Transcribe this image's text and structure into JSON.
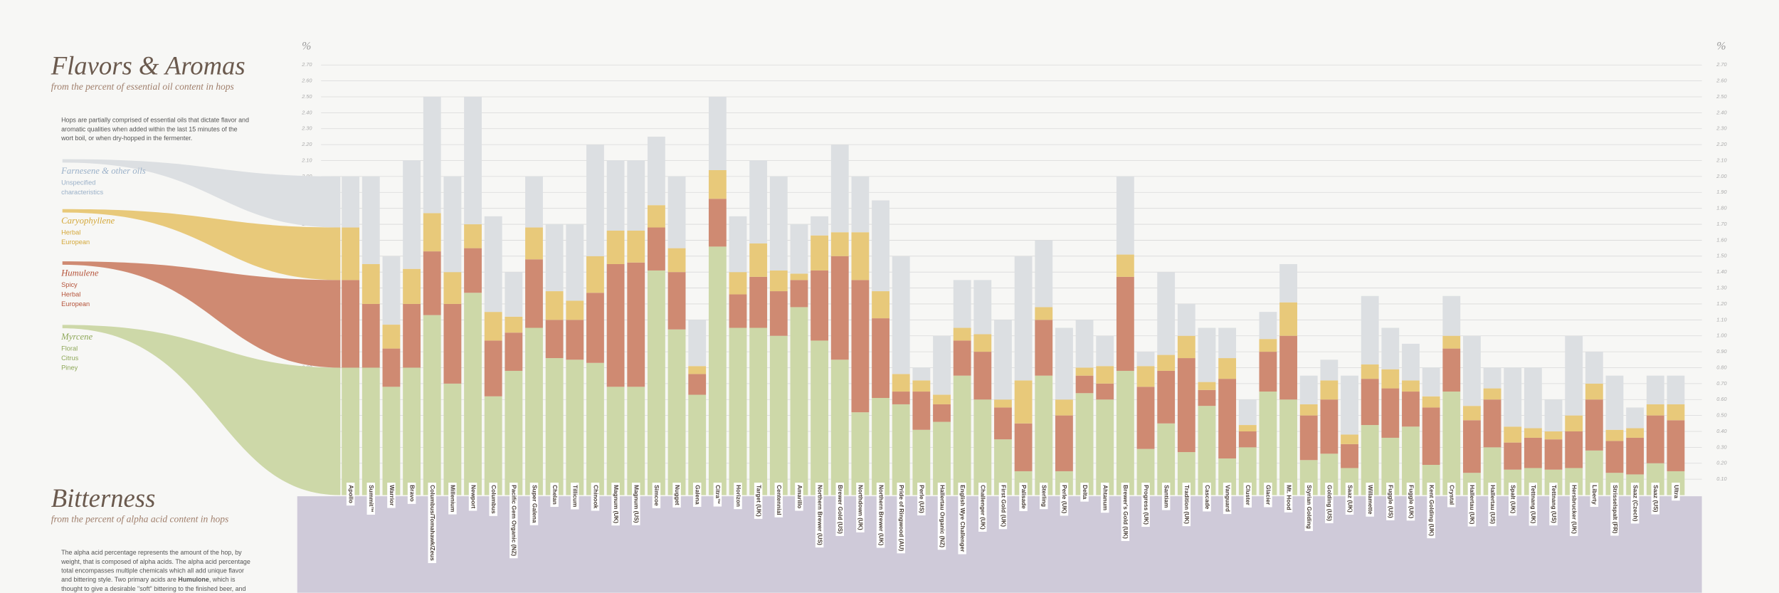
{
  "chart_data": {
    "type": "stacked-bar",
    "title": "Flavors & Aromas",
    "subtitle": "from the percent of essential oil content in hops",
    "description": [
      "Hops are partially comprised of essential oils that dictate flavor and",
      "aromatic qualities when added within the last 15 minutes of the",
      "wort boil, or when dry-hopped in the fermenter."
    ],
    "y_unit": "%",
    "ylim": [
      0,
      2.7
    ],
    "yticks": [
      {
        "value": 0.1,
        "label": "0.10"
      },
      {
        "value": 0.2,
        "label": "0.20"
      },
      {
        "value": 0.3,
        "label": "0.30"
      },
      {
        "value": 0.4,
        "label": "0.40"
      },
      {
        "value": 0.5,
        "label": "0.50"
      },
      {
        "value": 0.6,
        "label": "0.60"
      },
      {
        "value": 0.7,
        "label": "0.70"
      },
      {
        "value": 0.8,
        "label": "0.80"
      },
      {
        "value": 0.9,
        "label": "0.90"
      },
      {
        "value": 1.0,
        "label": "1.00"
      },
      {
        "value": 1.1,
        "label": "1.10"
      },
      {
        "value": 1.2,
        "label": "1.20"
      },
      {
        "value": 1.3,
        "label": "1.30"
      },
      {
        "value": 1.4,
        "label": "1.40"
      },
      {
        "value": 1.5,
        "label": "1.50"
      },
      {
        "value": 1.6,
        "label": "1.60"
      },
      {
        "value": 1.7,
        "label": "1.70"
      },
      {
        "value": 1.8,
        "label": "1.80"
      },
      {
        "value": 1.9,
        "label": "1.90"
      },
      {
        "value": 2.0,
        "label": "2.00"
      },
      {
        "value": 2.1,
        "label": "2.10"
      },
      {
        "value": 2.2,
        "label": "2.20"
      },
      {
        "value": 2.3,
        "label": "2.30"
      },
      {
        "value": 2.4,
        "label": "2.40"
      },
      {
        "value": 2.5,
        "label": "2.50"
      },
      {
        "value": 2.6,
        "label": "2.60"
      },
      {
        "value": 2.7,
        "label": "2.70"
      }
    ],
    "grid": true,
    "categories": [
      "Apollo",
      "Summit™",
      "Warrior",
      "Bravo",
      "Columbus/Tomahawk/Zeus",
      "Millenium",
      "Newport",
      "Columbus",
      "Pacific Gem Organic (NZ)",
      "Super Galena",
      "Chelan",
      "Tillicum",
      "Chinook",
      "Magnum (UK)",
      "Magnum (US)",
      "Simcoe",
      "Nugget",
      "Galena",
      "Citra™",
      "Horizon",
      "Target (UK)",
      "Centennial",
      "Amarillo",
      "Northern Brewer (US)",
      "Brewer Gold (US)",
      "Northdown (UK)",
      "Northern Brewer (UK)",
      "Pride of Ringwood (AU)",
      "Perle (US)",
      "Hallertau Organic (NZ)",
      "English Wye Challenger",
      "Challenger (UK)",
      "First Gold (UK)",
      "Palisade",
      "Sterling",
      "Perle (UK)",
      "Delta",
      "Ahtanum",
      "Brewer's Gold (UK)",
      "Progress (UK)",
      "Santiam",
      "Tradition (UK)",
      "Cascade",
      "Vanguard",
      "Cluster",
      "Glacier",
      "Mt. Hood",
      "Styrian Golding",
      "Golding (US)",
      "Saaz (UK)",
      "Willamette",
      "Fuggle (US)",
      "Fuggle (UK)",
      "Kent Golding (UK)",
      "Crystal",
      "Hallertau (UK)",
      "Hallertau (US)",
      "Spalt (UK)",
      "Tettnang (UK)",
      "Tettnang (US)",
      "Hersbrucker (UK)",
      "Liberty",
      "Strisselspalt (FR)",
      "Saaz (Czech)",
      "Saaz (US)",
      "Ultra"
    ],
    "series": [
      {
        "name": "Myrcene",
        "descriptors": [
          "Floral",
          "Citrus",
          "Piney"
        ],
        "color": "#cdd8a8",
        "text_color": "#8fa85a",
        "values": [
          0.8,
          0.8,
          0.68,
          0.8,
          1.13,
          0.7,
          1.27,
          0.62,
          0.78,
          1.05,
          0.86,
          0.85,
          0.83,
          0.68,
          0.68,
          1.41,
          1.04,
          0.63,
          1.56,
          1.05,
          1.05,
          1.0,
          1.18,
          0.97,
          0.85,
          0.52,
          0.61,
          0.57,
          0.41,
          0.46,
          0.75,
          0.6,
          0.35,
          0.15,
          0.75,
          0.15,
          0.64,
          0.6,
          0.78,
          0.29,
          0.45,
          0.27,
          0.56,
          0.23,
          0.3,
          0.65,
          0.6,
          0.22,
          0.26,
          0.17,
          0.44,
          0.36,
          0.43,
          0.19,
          0.65,
          0.14,
          0.3,
          0.16,
          0.17,
          0.16,
          0.17,
          0.28,
          0.14,
          0.13,
          0.2,
          0.15
        ]
      },
      {
        "name": "Humulene",
        "descriptors": [
          "Spicy",
          "Herbal",
          "European"
        ],
        "color": "#cf8a72",
        "text_color": "#b5533a",
        "values": [
          0.55,
          0.4,
          0.24,
          0.4,
          0.4,
          0.5,
          0.28,
          0.35,
          0.24,
          0.43,
          0.24,
          0.25,
          0.44,
          0.77,
          0.78,
          0.27,
          0.36,
          0.13,
          0.3,
          0.21,
          0.32,
          0.28,
          0.17,
          0.44,
          0.65,
          0.83,
          0.5,
          0.08,
          0.24,
          0.11,
          0.22,
          0.3,
          0.2,
          0.3,
          0.35,
          0.35,
          0.11,
          0.1,
          0.59,
          0.39,
          0.33,
          0.59,
          0.1,
          0.5,
          0.1,
          0.25,
          0.4,
          0.28,
          0.34,
          0.15,
          0.29,
          0.31,
          0.22,
          0.36,
          0.27,
          0.33,
          0.3,
          0.17,
          0.19,
          0.19,
          0.23,
          0.32,
          0.2,
          0.23,
          0.3,
          0.32
        ]
      },
      {
        "name": "Caryophyllene",
        "descriptors": [
          "Herbal",
          "European"
        ],
        "color": "#e8c97a",
        "text_color": "#d4a83a",
        "values": [
          0.33,
          0.25,
          0.15,
          0.22,
          0.24,
          0.2,
          0.15,
          0.18,
          0.1,
          0.2,
          0.18,
          0.12,
          0.23,
          0.21,
          0.2,
          0.14,
          0.15,
          0.05,
          0.18,
          0.14,
          0.21,
          0.13,
          0.04,
          0.22,
          0.15,
          0.3,
          0.17,
          0.11,
          0.07,
          0.06,
          0.08,
          0.11,
          0.05,
          0.27,
          0.08,
          0.1,
          0.05,
          0.11,
          0.14,
          0.13,
          0.1,
          0.14,
          0.05,
          0.13,
          0.04,
          0.08,
          0.21,
          0.07,
          0.12,
          0.06,
          0.09,
          0.12,
          0.07,
          0.07,
          0.08,
          0.09,
          0.07,
          0.1,
          0.06,
          0.05,
          0.1,
          0.1,
          0.07,
          0.06,
          0.07,
          0.1
        ]
      },
      {
        "name": "Farnesene & other oils",
        "descriptors": [
          "Unspecified",
          "characteristics"
        ],
        "color": "#dcdfe2",
        "text_color": "#9ab0c8",
        "values": [
          0.32,
          0.55,
          0.43,
          0.68,
          0.73,
          0.6,
          0.8,
          0.6,
          0.28,
          0.32,
          0.42,
          0.48,
          0.7,
          0.44,
          0.44,
          0.43,
          0.45,
          0.29,
          0.46,
          0.35,
          0.52,
          0.59,
          0.31,
          0.12,
          0.55,
          0.35,
          0.57,
          0.74,
          0.08,
          0.37,
          0.3,
          0.34,
          0.5,
          0.78,
          0.42,
          0.45,
          0.3,
          0.19,
          0.49,
          0.09,
          0.52,
          0.2,
          0.34,
          0.19,
          0.16,
          0.17,
          0.24,
          0.18,
          0.13,
          0.37,
          0.43,
          0.26,
          0.23,
          0.18,
          0.25,
          0.44,
          0.13,
          0.37,
          0.38,
          0.2,
          0.5,
          0.2,
          0.34,
          0.13,
          0.18,
          0.18
        ]
      }
    ]
  },
  "bitterness_section": {
    "title": "Bitterness",
    "subtitle": "from the percent of alpha acid content in hops",
    "text": [
      "The alpha acid percentage represents the amount of the hop, by",
      "weight, that is composed of alpha acids. The alpha acid percentage",
      "total encompasses multiple chemicals which all add unique flavor",
      [
        "and bittering style. Two primary acids are ",
        "Humulone",
        ", which is"
      ],
      "thought to give a desirable \"soft\" bittering to the finished beer, and"
    ]
  }
}
